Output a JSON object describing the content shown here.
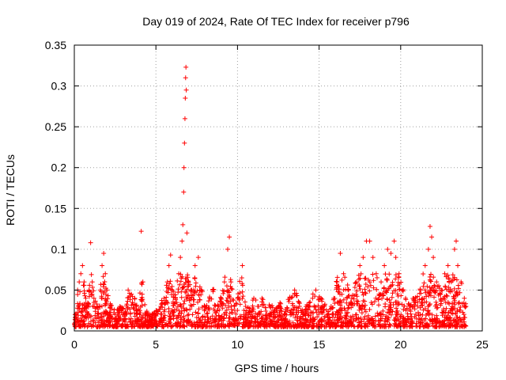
{
  "chart_data": {
    "type": "scatter",
    "title": "Day 019 of 2024, Rate Of TEC Index for receiver p796",
    "xlabel": "GPS time / hours",
    "ylabel": "ROTI / TECUs",
    "xlim": [
      0,
      25
    ],
    "ylim": [
      0,
      0.35
    ],
    "xticks": [
      0,
      5,
      10,
      15,
      20,
      25
    ],
    "xtick_labels": [
      "0",
      "5",
      "10",
      "15",
      "20",
      "25"
    ],
    "yticks": [
      0,
      0.05,
      0.1,
      0.15,
      0.2,
      0.25,
      0.3,
      0.35
    ],
    "ytick_labels": [
      "0",
      "0.05",
      "0.1",
      "0.15",
      "0.2",
      "0.25",
      "0.3",
      "0.35"
    ],
    "grid": true,
    "marker": "+",
    "color": "#ff0000",
    "series": [
      {
        "points": [
          [
            0.05,
            0.02
          ],
          [
            0.2,
            0.05
          ],
          [
            0.3,
            0.06
          ],
          [
            0.4,
            0.07
          ],
          [
            0.5,
            0.08
          ],
          [
            0.6,
            0.06
          ],
          [
            0.7,
            0.04
          ],
          [
            0.8,
            0.03
          ],
          [
            0.9,
            0.05
          ],
          [
            1.0,
            0.108
          ],
          [
            1.1,
            0.06
          ],
          [
            1.2,
            0.04
          ],
          [
            1.4,
            0.03
          ],
          [
            1.6,
            0.05
          ],
          [
            1.7,
            0.08
          ],
          [
            1.8,
            0.095
          ],
          [
            1.9,
            0.07
          ],
          [
            2.0,
            0.05
          ],
          [
            2.2,
            0.03
          ],
          [
            2.5,
            0.02
          ],
          [
            2.8,
            0.03
          ],
          [
            3.1,
            0.02
          ],
          [
            3.3,
            0.05
          ],
          [
            3.5,
            0.045
          ],
          [
            3.7,
            0.04
          ],
          [
            3.8,
            0.03
          ],
          [
            4.0,
            0.02
          ],
          [
            4.1,
            0.122
          ],
          [
            4.2,
            0.06
          ],
          [
            4.4,
            0.02
          ],
          [
            4.7,
            0.015
          ],
          [
            5.0,
            0.02
          ],
          [
            5.3,
            0.03
          ],
          [
            5.5,
            0.04
          ],
          [
            5.7,
            0.06
          ],
          [
            5.8,
            0.08
          ],
          [
            5.9,
            0.093
          ],
          [
            6.0,
            0.05
          ],
          [
            6.2,
            0.04
          ],
          [
            6.4,
            0.07
          ],
          [
            6.5,
            0.09
          ],
          [
            6.6,
            0.11
          ],
          [
            6.65,
            0.13
          ],
          [
            6.7,
            0.17
          ],
          [
            6.72,
            0.2
          ],
          [
            6.75,
            0.23
          ],
          [
            6.78,
            0.26
          ],
          [
            6.8,
            0.285
          ],
          [
            6.82,
            0.31
          ],
          [
            6.84,
            0.323
          ],
          [
            6.86,
            0.295
          ],
          [
            6.9,
            0.12
          ],
          [
            7.0,
            0.06
          ],
          [
            7.2,
            0.05
          ],
          [
            7.4,
            0.08
          ],
          [
            7.6,
            0.09
          ],
          [
            7.8,
            0.05
          ],
          [
            8.0,
            0.03
          ],
          [
            8.3,
            0.04
          ],
          [
            8.5,
            0.05
          ],
          [
            8.8,
            0.03
          ],
          [
            9.0,
            0.04
          ],
          [
            9.2,
            0.06
          ],
          [
            9.4,
            0.1
          ],
          [
            9.5,
            0.115
          ],
          [
            9.6,
            0.06
          ],
          [
            9.8,
            0.03
          ],
          [
            10.0,
            0.04
          ],
          [
            10.3,
            0.08
          ],
          [
            10.5,
            0.03
          ],
          [
            10.8,
            0.02
          ],
          [
            11.0,
            0.04
          ],
          [
            11.3,
            0.03
          ],
          [
            11.5,
            0.04
          ],
          [
            11.8,
            0.02
          ],
          [
            12.0,
            0.03
          ],
          [
            12.3,
            0.02
          ],
          [
            12.6,
            0.03
          ],
          [
            12.9,
            0.02
          ],
          [
            13.2,
            0.04
          ],
          [
            13.5,
            0.05
          ],
          [
            13.8,
            0.03
          ],
          [
            14.0,
            0.02
          ],
          [
            14.3,
            0.03
          ],
          [
            14.6,
            0.04
          ],
          [
            14.8,
            0.05
          ],
          [
            15.0,
            0.04
          ],
          [
            15.3,
            0.03
          ],
          [
            15.6,
            0.02
          ],
          [
            15.9,
            0.04
          ],
          [
            16.1,
            0.06
          ],
          [
            16.3,
            0.095
          ],
          [
            16.5,
            0.07
          ],
          [
            16.8,
            0.05
          ],
          [
            17.0,
            0.04
          ],
          [
            17.3,
            0.06
          ],
          [
            17.5,
            0.08
          ],
          [
            17.7,
            0.09
          ],
          [
            17.9,
            0.11
          ],
          [
            18.1,
            0.11
          ],
          [
            18.3,
            0.09
          ],
          [
            18.5,
            0.07
          ],
          [
            18.8,
            0.06
          ],
          [
            19.0,
            0.08
          ],
          [
            19.2,
            0.1
          ],
          [
            19.4,
            0.095
          ],
          [
            19.6,
            0.11
          ],
          [
            19.7,
            0.09
          ],
          [
            19.9,
            0.07
          ],
          [
            20.1,
            0.05
          ],
          [
            20.3,
            0.04
          ],
          [
            20.6,
            0.03
          ],
          [
            20.9,
            0.04
          ],
          [
            21.2,
            0.05
          ],
          [
            21.5,
            0.08
          ],
          [
            21.7,
            0.1
          ],
          [
            21.8,
            0.128
          ],
          [
            21.9,
            0.115
          ],
          [
            22.0,
            0.09
          ],
          [
            22.2,
            0.06
          ],
          [
            22.5,
            0.05
          ],
          [
            22.7,
            0.07
          ],
          [
            22.9,
            0.08
          ],
          [
            23.1,
            0.06
          ],
          [
            23.3,
            0.1
          ],
          [
            23.4,
            0.11
          ],
          [
            23.5,
            0.08
          ],
          [
            23.7,
            0.06
          ],
          [
            23.9,
            0.04
          ],
          [
            24.0,
            0.03
          ]
        ]
      }
    ]
  }
}
